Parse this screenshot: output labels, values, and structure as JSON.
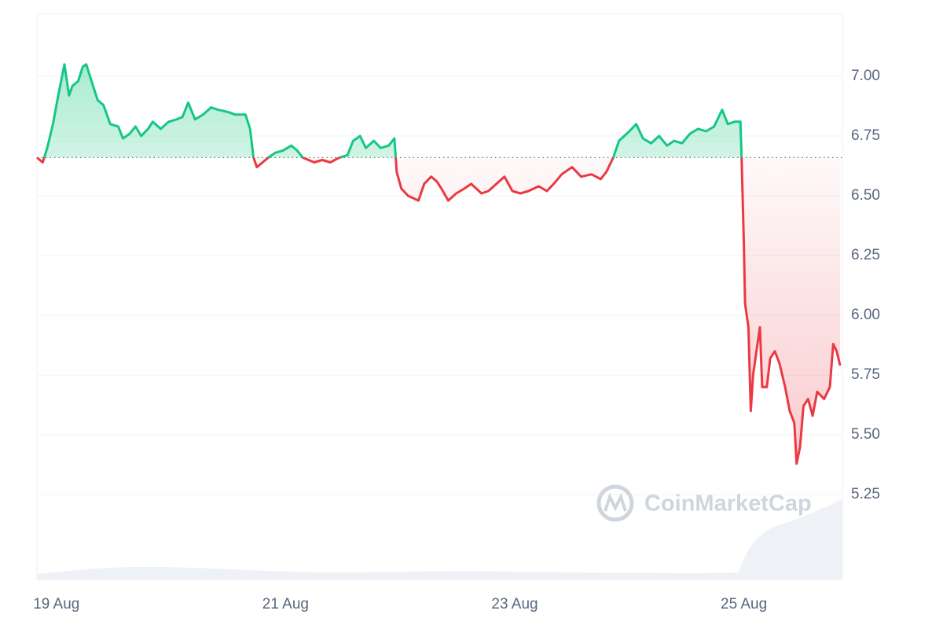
{
  "chart_data": {
    "type": "line",
    "watermark": "CoinMarketCap",
    "baseline": 6.66,
    "up_color": "#16c784",
    "down_color": "#ea3943",
    "grid": true,
    "xlim": [
      18.83,
      25.86
    ],
    "ylim": [
      4.895,
      7.26
    ],
    "xticks": [
      {
        "value": 19,
        "label": "19 Aug"
      },
      {
        "value": 21,
        "label": "21 Aug"
      },
      {
        "value": 23,
        "label": "23 Aug"
      },
      {
        "value": 25,
        "label": "25 Aug"
      }
    ],
    "yticks": [
      {
        "value": 5.25,
        "label": "5.25"
      },
      {
        "value": 5.5,
        "label": "5.50"
      },
      {
        "value": 5.75,
        "label": "5.75"
      },
      {
        "value": 6,
        "label": "6.00"
      },
      {
        "value": 6.25,
        "label": "6.25"
      },
      {
        "value": 6.5,
        "label": "6.50"
      },
      {
        "value": 6.75,
        "label": "6.75"
      },
      {
        "value": 7,
        "label": "7.00"
      }
    ],
    "x": [
      18.83,
      18.88,
      18.92,
      18.97,
      19.02,
      19.07,
      19.11,
      19.14,
      19.19,
      19.23,
      19.26,
      19.32,
      19.36,
      19.41,
      19.47,
      19.54,
      19.58,
      19.64,
      19.69,
      19.74,
      19.8,
      19.84,
      19.91,
      19.98,
      20.05,
      20.1,
      20.15,
      20.21,
      20.28,
      20.35,
      20.41,
      20.5,
      20.56,
      20.65,
      20.69,
      20.72,
      20.75,
      20.8,
      20.85,
      20.91,
      20.98,
      21.05,
      21.1,
      21.15,
      21.2,
      21.25,
      21.32,
      21.39,
      21.47,
      21.54,
      21.59,
      21.65,
      21.7,
      21.77,
      21.83,
      21.9,
      21.95,
      21.97,
      22.01,
      22.07,
      22.16,
      22.21,
      22.27,
      22.32,
      22.36,
      22.42,
      22.49,
      22.56,
      22.62,
      22.71,
      22.77,
      22.84,
      22.91,
      22.98,
      23.05,
      23.12,
      23.21,
      23.28,
      23.34,
      23.41,
      23.5,
      23.58,
      23.67,
      23.75,
      23.8,
      23.86,
      23.91,
      24.0,
      24.06,
      24.12,
      24.19,
      24.26,
      24.33,
      24.39,
      24.46,
      24.53,
      24.6,
      24.67,
      24.74,
      24.81,
      24.86,
      24.92,
      24.97,
      24.98,
      25.0,
      25.01,
      25.04,
      25.06,
      25.08,
      25.11,
      25.14,
      25.16,
      25.2,
      25.23,
      25.27,
      25.31,
      25.36,
      25.4,
      25.44,
      25.46,
      25.49,
      25.52,
      25.56,
      25.6,
      25.64,
      25.7,
      25.75,
      25.78,
      25.81,
      25.84
    ],
    "values": [
      6.66,
      6.64,
      6.7,
      6.8,
      6.93,
      7.05,
      6.92,
      6.96,
      6.98,
      7.04,
      7.05,
      6.96,
      6.9,
      6.88,
      6.8,
      6.79,
      6.74,
      6.76,
      6.79,
      6.75,
      6.78,
      6.81,
      6.78,
      6.81,
      6.82,
      6.83,
      6.89,
      6.82,
      6.84,
      6.87,
      6.86,
      6.85,
      6.84,
      6.84,
      6.78,
      6.66,
      6.62,
      6.64,
      6.66,
      6.68,
      6.69,
      6.71,
      6.69,
      6.66,
      6.65,
      6.64,
      6.65,
      6.64,
      6.66,
      6.67,
      6.73,
      6.75,
      6.7,
      6.73,
      6.7,
      6.71,
      6.74,
      6.6,
      6.53,
      6.5,
      6.48,
      6.55,
      6.58,
      6.56,
      6.53,
      6.48,
      6.51,
      6.53,
      6.55,
      6.51,
      6.52,
      6.55,
      6.58,
      6.52,
      6.51,
      6.52,
      6.54,
      6.52,
      6.55,
      6.59,
      6.62,
      6.58,
      6.59,
      6.57,
      6.6,
      6.66,
      6.73,
      6.77,
      6.8,
      6.74,
      6.72,
      6.75,
      6.71,
      6.73,
      6.72,
      6.76,
      6.78,
      6.77,
      6.79,
      6.86,
      6.8,
      6.81,
      6.81,
      6.66,
      6.3,
      6.05,
      5.95,
      5.6,
      5.75,
      5.85,
      5.95,
      5.7,
      5.7,
      5.82,
      5.85,
      5.8,
      5.7,
      5.6,
      5.55,
      5.38,
      5.45,
      5.62,
      5.65,
      5.58,
      5.68,
      5.65,
      5.7,
      5.88,
      5.85,
      5.79
    ]
  }
}
